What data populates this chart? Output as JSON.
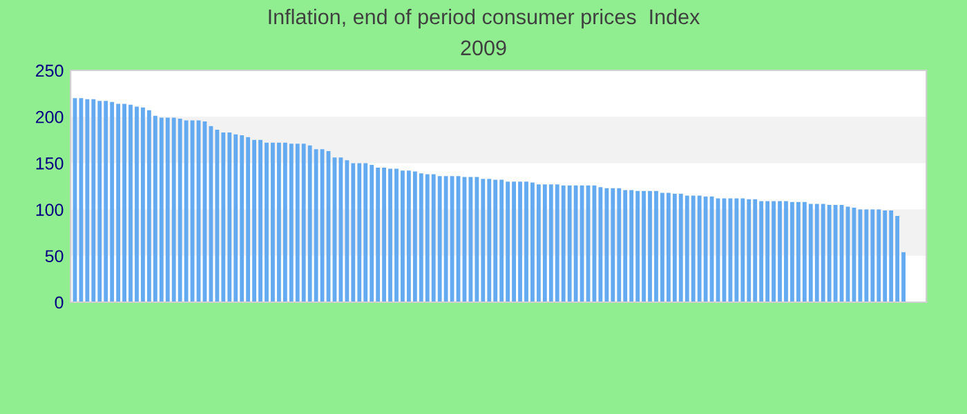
{
  "chart_data": {
    "type": "bar",
    "title": "Inflation, end of period consumer prices  Index",
    "subtitle": "2009",
    "categories": [
      null,
      null,
      null,
      null,
      null,
      null,
      null,
      null,
      null,
      null,
      null,
      null,
      null,
      null,
      null,
      null,
      null,
      null,
      null,
      null,
      null,
      null,
      null,
      null,
      null,
      null,
      null,
      null,
      null,
      null,
      null,
      null,
      null,
      null,
      null,
      null,
      null,
      null,
      null,
      null,
      null,
      null,
      null,
      null,
      null,
      null,
      null,
      null,
      null,
      null,
      null,
      null,
      null,
      null,
      null,
      null,
      null,
      null,
      null,
      null,
      null,
      null,
      null,
      null,
      null,
      null,
      null,
      null,
      null,
      null,
      null,
      null,
      null,
      null,
      null,
      null,
      null,
      null,
      null,
      null,
      null,
      null,
      null,
      null,
      null,
      null,
      null,
      null,
      null,
      null,
      null,
      null,
      null,
      null,
      null,
      null,
      null,
      null,
      null,
      null,
      null,
      null,
      null,
      null,
      null,
      null,
      null,
      null,
      null,
      null,
      null,
      null,
      null,
      null,
      null,
      null,
      null,
      null,
      null,
      null,
      null,
      null,
      null,
      null,
      null,
      null,
      null,
      null,
      null,
      null,
      null,
      null,
      null,
      null,
      null
    ],
    "values": [
      220,
      220,
      219,
      219,
      217,
      217,
      216,
      214,
      214,
      213,
      211,
      210,
      207,
      201,
      199,
      199,
      199,
      198,
      196,
      196,
      196,
      195,
      190,
      186,
      183,
      183,
      181,
      180,
      178,
      175,
      175,
      172,
      172,
      172,
      172,
      171,
      171,
      171,
      169,
      165,
      165,
      163,
      156,
      156,
      153,
      150,
      150,
      150,
      148,
      145,
      145,
      144,
      144,
      142,
      142,
      141,
      139,
      138,
      138,
      136,
      136,
      136,
      136,
      135,
      135,
      135,
      133,
      133,
      132,
      132,
      130,
      130,
      130,
      130,
      129,
      127,
      127,
      127,
      127,
      126,
      126,
      126,
      126,
      126,
      126,
      124,
      123,
      123,
      123,
      121,
      121,
      120,
      120,
      120,
      120,
      118,
      118,
      117,
      117,
      115,
      115,
      115,
      114,
      114,
      112,
      112,
      112,
      112,
      112,
      111,
      111,
      109,
      109,
      109,
      109,
      109,
      108,
      108,
      108,
      106,
      106,
      106,
      105,
      105,
      105,
      103,
      102,
      100,
      100,
      100,
      100,
      99,
      99,
      93,
      54
    ],
    "color": "#64aaf0",
    "ylim": [
      0,
      250
    ],
    "yticks": [
      0,
      50,
      100,
      150,
      200,
      250
    ],
    "bands": [
      {
        "axis": "y",
        "from": 50,
        "to": 100,
        "color": "#f2f2f2"
      },
      {
        "axis": "y",
        "from": 150,
        "to": 200,
        "color": "#f2f2f2"
      }
    ]
  }
}
